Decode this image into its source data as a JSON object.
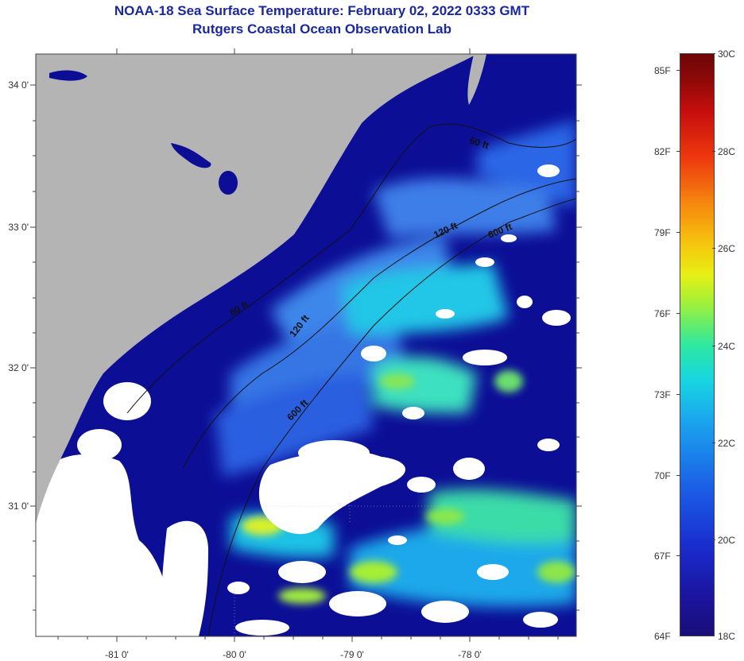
{
  "header": {
    "title": "NOAA-18 Sea Surface Temperature:  February 02, 2022 0333 GMT",
    "subtitle": "Rutgers Coastal Ocean Observation Lab"
  },
  "map": {
    "lat_labels": [
      "34 0'",
      "33 0'",
      "32 0'",
      "31 0'"
    ],
    "lon_labels": [
      "-81 0'",
      "-80 0'",
      "-79 0'",
      "-78 0'"
    ],
    "contour_labels": [
      "60 ft",
      "60 ft",
      "120 ft",
      "120 ft",
      "600 ft",
      "600 ft"
    ],
    "colors": {
      "land": "#b4b4b4",
      "cloud": "#ffffff",
      "cold_water": "#0c0e96"
    }
  },
  "colorbar": {
    "fahrenheit_labels": [
      "85F",
      "82F",
      "79F",
      "76F",
      "73F",
      "70F",
      "67F",
      "64F"
    ],
    "celsius_labels": [
      "30C",
      "28C",
      "26C",
      "24C",
      "22C",
      "20C",
      "18C"
    ]
  }
}
